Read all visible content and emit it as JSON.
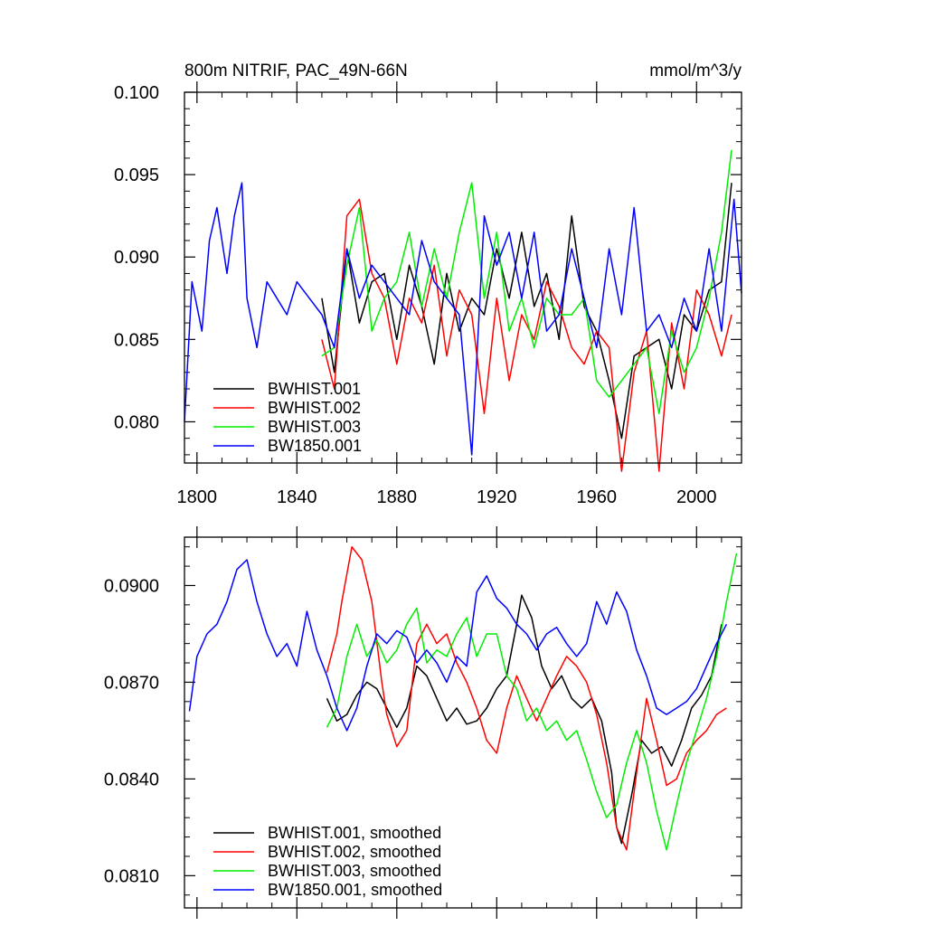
{
  "chart_data": [
    {
      "type": "line",
      "title": "800m NITRIF, PAC_49N-66N",
      "units": "mmol/m^3/y",
      "xlim": [
        1795,
        2018
      ],
      "ylim": [
        0.0775,
        0.1
      ],
      "xticks": [
        1800,
        1840,
        1880,
        1920,
        1960,
        2000
      ],
      "yticks": [
        0.08,
        0.085,
        0.09,
        0.095,
        0.1
      ],
      "ytick_labels": [
        "0.080",
        "0.085",
        "0.090",
        "0.095",
        "0.100"
      ],
      "legend_position": "bottom-left",
      "series": [
        {
          "name": "BWHIST.001",
          "color": "#000000",
          "x": [
            1850,
            1855,
            1860,
            1865,
            1870,
            1875,
            1880,
            1885,
            1890,
            1895,
            1900,
            1905,
            1910,
            1915,
            1920,
            1925,
            1930,
            1935,
            1940,
            1945,
            1950,
            1955,
            1960,
            1965,
            1970,
            1975,
            1980,
            1985,
            1990,
            1995,
            2000,
            2005,
            2010,
            2014
          ],
          "y": [
            0.0875,
            0.083,
            0.0905,
            0.086,
            0.0885,
            0.089,
            0.085,
            0.0895,
            0.087,
            0.0835,
            0.089,
            0.0855,
            0.0875,
            0.0865,
            0.0905,
            0.0875,
            0.0915,
            0.087,
            0.089,
            0.085,
            0.0925,
            0.087,
            0.0855,
            0.0825,
            0.079,
            0.084,
            0.0845,
            0.085,
            0.082,
            0.0865,
            0.0855,
            0.088,
            0.0885,
            0.0945
          ]
        },
        {
          "name": "BWHIST.002",
          "color": "#ff0000",
          "x": [
            1850,
            1855,
            1860,
            1865,
            1870,
            1875,
            1880,
            1885,
            1890,
            1895,
            1900,
            1905,
            1910,
            1915,
            1920,
            1925,
            1930,
            1935,
            1940,
            1945,
            1950,
            1955,
            1960,
            1965,
            1970,
            1975,
            1980,
            1985,
            1990,
            1995,
            2000,
            2005,
            2010,
            2014
          ],
          "y": [
            0.085,
            0.082,
            0.0925,
            0.0935,
            0.089,
            0.0875,
            0.0835,
            0.0875,
            0.086,
            0.0895,
            0.084,
            0.088,
            0.0865,
            0.0805,
            0.0875,
            0.0825,
            0.0865,
            0.085,
            0.0885,
            0.087,
            0.0845,
            0.0835,
            0.0855,
            0.0845,
            0.077,
            0.083,
            0.0855,
            0.077,
            0.086,
            0.082,
            0.088,
            0.0865,
            0.084,
            0.0865
          ]
        },
        {
          "name": "BWHIST.003",
          "color": "#00ee00",
          "x": [
            1850,
            1855,
            1860,
            1865,
            1870,
            1875,
            1880,
            1885,
            1890,
            1895,
            1900,
            1905,
            1910,
            1915,
            1920,
            1925,
            1930,
            1935,
            1940,
            1945,
            1950,
            1955,
            1960,
            1965,
            1970,
            1975,
            1980,
            1985,
            1990,
            1995,
            2000,
            2005,
            2010,
            2014
          ],
          "y": [
            0.084,
            0.0845,
            0.0895,
            0.093,
            0.0855,
            0.0875,
            0.0885,
            0.0915,
            0.087,
            0.0905,
            0.0875,
            0.0915,
            0.0945,
            0.0875,
            0.0915,
            0.0855,
            0.0875,
            0.0845,
            0.0875,
            0.0865,
            0.0865,
            0.0875,
            0.0825,
            0.0815,
            0.0825,
            0.0835,
            0.0845,
            0.0805,
            0.0855,
            0.083,
            0.0845,
            0.0875,
            0.0915,
            0.0965
          ]
        },
        {
          "name": "BW1850.001",
          "color": "#0000ff",
          "x": [
            1795,
            1798,
            1802,
            1805,
            1808,
            1812,
            1815,
            1818,
            1820,
            1824,
            1828,
            1832,
            1836,
            1840,
            1845,
            1850,
            1855,
            1860,
            1865,
            1870,
            1875,
            1880,
            1885,
            1890,
            1895,
            1900,
            1905,
            1910,
            1915,
            1920,
            1925,
            1930,
            1935,
            1940,
            1945,
            1950,
            1955,
            1960,
            1965,
            1970,
            1975,
            1980,
            1985,
            1990,
            1995,
            2000,
            2005,
            2010,
            2015,
            2018
          ],
          "y": [
            0.08,
            0.0885,
            0.0855,
            0.091,
            0.093,
            0.089,
            0.0925,
            0.0945,
            0.0875,
            0.0845,
            0.0885,
            0.0875,
            0.0865,
            0.0885,
            0.0875,
            0.0865,
            0.0845,
            0.0905,
            0.0875,
            0.0895,
            0.0885,
            0.0875,
            0.0865,
            0.091,
            0.0885,
            0.0875,
            0.0865,
            0.078,
            0.0925,
            0.0895,
            0.0915,
            0.0875,
            0.0915,
            0.0855,
            0.0865,
            0.0905,
            0.0875,
            0.0845,
            0.0905,
            0.0865,
            0.093,
            0.0855,
            0.0865,
            0.0845,
            0.0875,
            0.0855,
            0.0905,
            0.0855,
            0.0935,
            0.0878
          ]
        }
      ]
    },
    {
      "type": "line",
      "title": "",
      "xlim": [
        1795,
        2018
      ],
      "ylim": [
        0.08,
        0.0915
      ],
      "xticks": [
        1800,
        1840,
        1880,
        1920,
        1960,
        2000
      ],
      "yticks": [
        0.081,
        0.084,
        0.087,
        0.09
      ],
      "ytick_labels": [
        "0.0810",
        "0.0840",
        "0.0870",
        "0.0900"
      ],
      "legend_position": "bottom-left",
      "series": [
        {
          "name": "BWHIST.001, smoothed",
          "color": "#000000",
          "x": [
            1852,
            1856,
            1860,
            1864,
            1868,
            1872,
            1876,
            1880,
            1884,
            1888,
            1892,
            1896,
            1900,
            1904,
            1908,
            1912,
            1916,
            1920,
            1924,
            1928,
            1930,
            1934,
            1938,
            1942,
            1946,
            1950,
            1954,
            1958,
            1962,
            1966,
            1968,
            1970,
            1974,
            1978,
            1982,
            1986,
            1990,
            1994,
            1998,
            2002,
            2006,
            2010
          ],
          "y": [
            0.0865,
            0.0858,
            0.086,
            0.0866,
            0.087,
            0.0868,
            0.0862,
            0.0856,
            0.0862,
            0.0875,
            0.0872,
            0.0865,
            0.0858,
            0.0862,
            0.0857,
            0.0858,
            0.0862,
            0.0868,
            0.0872,
            0.0888,
            0.0897,
            0.089,
            0.0875,
            0.0868,
            0.0872,
            0.0865,
            0.0862,
            0.0865,
            0.0858,
            0.0842,
            0.0825,
            0.082,
            0.0835,
            0.0852,
            0.0848,
            0.085,
            0.0844,
            0.0852,
            0.0862,
            0.0866,
            0.0872,
            0.0888
          ]
        },
        {
          "name": "BWHIST.002, smoothed",
          "color": "#ff0000",
          "x": [
            1852,
            1856,
            1858,
            1862,
            1866,
            1870,
            1874,
            1876,
            1880,
            1884,
            1888,
            1892,
            1896,
            1900,
            1904,
            1908,
            1912,
            1916,
            1920,
            1924,
            1928,
            1932,
            1936,
            1940,
            1944,
            1948,
            1952,
            1956,
            1960,
            1964,
            1968,
            1972,
            1976,
            1980,
            1984,
            1988,
            1992,
            1996,
            2000,
            2004,
            2008,
            2012
          ],
          "y": [
            0.0873,
            0.0885,
            0.0895,
            0.0912,
            0.0908,
            0.0895,
            0.087,
            0.086,
            0.085,
            0.0855,
            0.0882,
            0.0888,
            0.0882,
            0.0885,
            0.0876,
            0.087,
            0.0862,
            0.0852,
            0.0848,
            0.0862,
            0.0872,
            0.0865,
            0.0858,
            0.0865,
            0.0872,
            0.0878,
            0.0875,
            0.087,
            0.086,
            0.0845,
            0.0825,
            0.0818,
            0.0842,
            0.0865,
            0.0852,
            0.0838,
            0.084,
            0.0848,
            0.0852,
            0.0855,
            0.086,
            0.0862
          ]
        },
        {
          "name": "BWHIST.003, smoothed",
          "color": "#00ee00",
          "x": [
            1852,
            1856,
            1860,
            1864,
            1868,
            1872,
            1876,
            1880,
            1884,
            1888,
            1892,
            1896,
            1900,
            1904,
            1908,
            1912,
            1916,
            1920,
            1924,
            1928,
            1932,
            1936,
            1940,
            1944,
            1948,
            1952,
            1956,
            1960,
            1964,
            1968,
            1972,
            1976,
            1980,
            1984,
            1988,
            1992,
            1996,
            2000,
            2004,
            2008,
            2012,
            2016
          ],
          "y": [
            0.0856,
            0.0862,
            0.0878,
            0.0888,
            0.0878,
            0.0883,
            0.0876,
            0.088,
            0.0888,
            0.0893,
            0.0876,
            0.088,
            0.0878,
            0.0885,
            0.089,
            0.0878,
            0.0885,
            0.0885,
            0.0872,
            0.0868,
            0.0858,
            0.0862,
            0.0855,
            0.0858,
            0.0852,
            0.0855,
            0.0846,
            0.0836,
            0.0828,
            0.0832,
            0.0845,
            0.0855,
            0.0845,
            0.083,
            0.0818,
            0.0832,
            0.0845,
            0.0855,
            0.0865,
            0.0878,
            0.0895,
            0.091
          ]
        },
        {
          "name": "BW1850.001, smoothed",
          "color": "#0000ff",
          "x": [
            1797,
            1800,
            1804,
            1808,
            1812,
            1816,
            1820,
            1824,
            1828,
            1832,
            1836,
            1840,
            1844,
            1848,
            1852,
            1856,
            1860,
            1864,
            1868,
            1872,
            1876,
            1880,
            1884,
            1888,
            1892,
            1896,
            1900,
            1904,
            1908,
            1912,
            1916,
            1920,
            1924,
            1928,
            1932,
            1936,
            1940,
            1944,
            1948,
            1952,
            1956,
            1960,
            1964,
            1968,
            1972,
            1976,
            1980,
            1984,
            1988,
            1992,
            1996,
            2000,
            2004,
            2008,
            2012
          ],
          "y": [
            0.0861,
            0.0878,
            0.0885,
            0.0888,
            0.0895,
            0.0905,
            0.0908,
            0.0895,
            0.0885,
            0.0878,
            0.0882,
            0.0875,
            0.0892,
            0.088,
            0.0872,
            0.0862,
            0.0855,
            0.0862,
            0.0875,
            0.0885,
            0.0882,
            0.0886,
            0.0884,
            0.0876,
            0.088,
            0.0876,
            0.087,
            0.0878,
            0.0875,
            0.0898,
            0.0903,
            0.0896,
            0.0893,
            0.0888,
            0.0885,
            0.088,
            0.0885,
            0.0887,
            0.0882,
            0.0878,
            0.0882,
            0.0895,
            0.0888,
            0.0898,
            0.0892,
            0.088,
            0.0872,
            0.0862,
            0.086,
            0.0862,
            0.0864,
            0.0868,
            0.0875,
            0.0882,
            0.0888
          ]
        }
      ]
    }
  ]
}
